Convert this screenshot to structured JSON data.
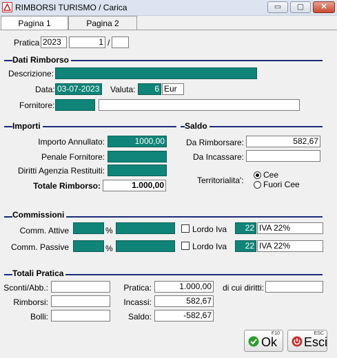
{
  "window": {
    "title": "RIMBORSI TURISMO / Carica",
    "minimize": "▭",
    "maximize": "▢",
    "close": "✕"
  },
  "tabs": [
    {
      "label": "Pagina 1"
    },
    {
      "label": "Pagina 2"
    }
  ],
  "pratica": {
    "label": "Pratica",
    "year": "2023",
    "number": "1",
    "separator": "/",
    "suffix": ""
  },
  "dati_rimborso": {
    "section_title": "Dati Rimborso",
    "descrizione_label": "Descrizione:",
    "descrizione_value": "",
    "data_label": "Data:",
    "data_value": "03-07-2023",
    "valuta_label": "Valuta:",
    "valuta_code": "6",
    "valuta_name": "Eur",
    "fornitore_label": "Fornitore:",
    "fornitore_code": "",
    "fornitore_name": ""
  },
  "importi": {
    "section_title": "Importi",
    "annullato_label": "Importo Annullato:",
    "annullato_value": "1000,00",
    "penale_label": "Penale Fornitore:",
    "penale_value": "",
    "diritti_label": "Diritti Agenzia Restituiti:",
    "diritti_value": "",
    "totale_label": "Totale Rimborso:",
    "totale_value": "1.000,00"
  },
  "saldo": {
    "section_title": "Saldo",
    "da_rimborsare_label": "Da Rimborsare:",
    "da_rimborsare_value": "582,67",
    "da_incassare_label": "Da Incassare:",
    "da_incassare_value": "",
    "territorialita_label": "Territorialita':",
    "options": [
      {
        "label": "Cee",
        "selected": true
      },
      {
        "label": "Fuori Cee",
        "selected": false
      }
    ]
  },
  "commissioni": {
    "section_title": "Commissioni",
    "attive_label": "Comm. Attive",
    "attive_pct": "",
    "pct_symbol": "%",
    "attive_value": "",
    "attive_lordo_label": "Lordo Iva",
    "attive_iva_code": "22",
    "attive_iva_desc": "IVA 22%",
    "passive_label": "Comm. Passive",
    "passive_pct": "",
    "passive_value": "",
    "passive_lordo_label": "Lordo Iva",
    "passive_iva_code": "22",
    "passive_iva_desc": "IVA 22%"
  },
  "totali": {
    "section_title": "Totali Pratica",
    "sconti_label": "Sconti/Abb.:",
    "sconti_value": "",
    "rimborsi_label": "Rimborsi:",
    "rimborsi_value": "",
    "bolli_label": "Bolli:",
    "bolli_value": "",
    "pratica_label": "Pratica:",
    "pratica_value": "1.000,00",
    "incassi_label": "Incassi:",
    "incassi_value": "582,67",
    "saldo_label": "Saldo:",
    "saldo_value": "-582,67",
    "diritti_label": "di cui diritti:",
    "diritti_value": ""
  },
  "buttons": {
    "ok": {
      "key": "F10",
      "label": "Ok",
      "icon": "check-icon",
      "color": "#2e9a2e"
    },
    "esci": {
      "key": "ESC",
      "label": "Esci",
      "icon": "power-icon",
      "color": "#c83030"
    }
  },
  "colors": {
    "field_teal": "#108478",
    "section_line": "#1a2a7a",
    "window_bg": "#f0f0f0"
  }
}
